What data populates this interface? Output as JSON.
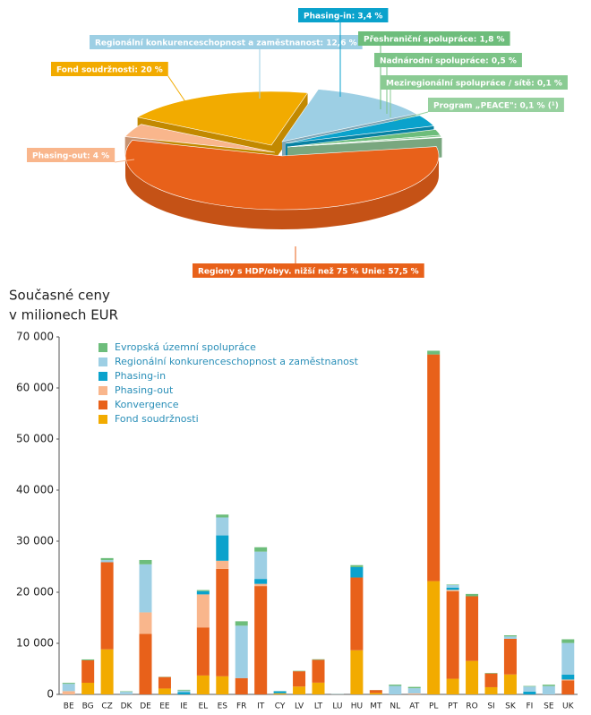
{
  "chart_data": [
    {
      "type": "pie",
      "categories": [
        "Regiony s HDP/obyv. nižší než 75 % Unie: 57,5 %",
        "Phasing-out: 4 %",
        "Fond soudržnosti: 20 %",
        "Regionální konkurenceschopnost a zaměstnanost: 12,6 %",
        "Phasing-in: 3,4 %",
        "Přeshraniční spolupráce: 1,8 %",
        "Nadnárodní spolupráce: 0,5 %",
        "Meziregionální spolupráce / sítě: 0,1 %",
        "Program „PEACE\": 0,1 % (¹)"
      ],
      "values": [
        57.5,
        4,
        20,
        12.6,
        3.4,
        1.8,
        0.5,
        0.1,
        0.1
      ],
      "colors": [
        "#e8611a",
        "#f9b68c",
        "#f2ab00",
        "#9dcfe4",
        "#0aa2cc",
        "#6dbd7b",
        "#7cc487",
        "#8acb93",
        "#97d19f"
      ]
    },
    {
      "type": "stacked_bar",
      "y_label": [
        "Současné ceny",
        "v milionech EUR"
      ],
      "categories": [
        "BE",
        "BG",
        "CZ",
        "DK",
        "DE",
        "EE",
        "IE",
        "EL",
        "ES",
        "FR",
        "IT",
        "CY",
        "LV",
        "LT",
        "LU",
        "HU",
        "MT",
        "NL",
        "AT",
        "PL",
        "PT",
        "RO",
        "SI",
        "SK",
        "FI",
        "SE",
        "UK"
      ],
      "series": [
        {
          "name": "Fond soudržnosti",
          "color": "#f2ab00",
          "values": [
            0,
            2280,
            8820,
            0,
            0,
            1150,
            0,
            3700,
            3540,
            0,
            0,
            210,
            1540,
            2300,
            0,
            8640,
            280,
            0,
            0,
            22180,
            3060,
            6550,
            1410,
            3900,
            0,
            0,
            0
          ]
        },
        {
          "name": "Konvergence",
          "color": "#e8611a",
          "values": [
            0,
            4390,
            17060,
            0,
            11860,
            2250,
            0,
            9420,
            21050,
            3190,
            21210,
            0,
            2990,
            4470,
            0,
            14250,
            560,
            0,
            0,
            44380,
            17130,
            12660,
            2690,
            6990,
            0,
            0,
            2740
          ]
        },
        {
          "name": "Phasing-out",
          "color": "#f9b68c",
          "values": [
            640,
            0,
            0,
            0,
            4200,
            0,
            0,
            6460,
            1580,
            0,
            430,
            0,
            0,
            0,
            0,
            0,
            0,
            0,
            180,
            0,
            280,
            0,
            0,
            0,
            0,
            0,
            170
          ]
        },
        {
          "name": "Phasing-in",
          "color": "#0aa2cc",
          "values": [
            0,
            0,
            0,
            0,
            0,
            0,
            460,
            640,
            4960,
            0,
            970,
            400,
            0,
            0,
            0,
            2030,
            0,
            0,
            0,
            0,
            450,
            0,
            0,
            0,
            550,
            0,
            960
          ]
        },
        {
          "name": "Regionální konkurenceschopnost a zaměstnanost",
          "color": "#9dcfe4",
          "values": [
            1430,
            0,
            420,
            510,
            9410,
            0,
            290,
            0,
            3520,
            10260,
            5350,
            0,
            0,
            0,
            50,
            0,
            0,
            1660,
            1030,
            0,
            490,
            0,
            0,
            450,
            980,
            1630,
            6200
          ]
        },
        {
          "name": "Evropská územní spolupráce",
          "color": "#6dbd7b",
          "values": [
            190,
            180,
            390,
            100,
            850,
            50,
            150,
            210,
            560,
            870,
            850,
            30,
            90,
            110,
            20,
            390,
            20,
            250,
            260,
            730,
            100,
            460,
            100,
            230,
            120,
            270,
            720
          ]
        }
      ],
      "ylim": [
        0,
        70000
      ],
      "yticks": [
        0,
        {
          "value": 10000,
          "label": "10 000"
        },
        {
          "value": 20000,
          "label": "20 000"
        },
        {
          "value": 30000,
          "label": "30 000"
        },
        {
          "value": 40000,
          "label": "40 000"
        },
        {
          "value": 50000,
          "label": "50 000"
        },
        {
          "value": 60000,
          "label": "60 000"
        },
        {
          "value": 70000,
          "label": "70 000"
        }
      ]
    }
  ]
}
